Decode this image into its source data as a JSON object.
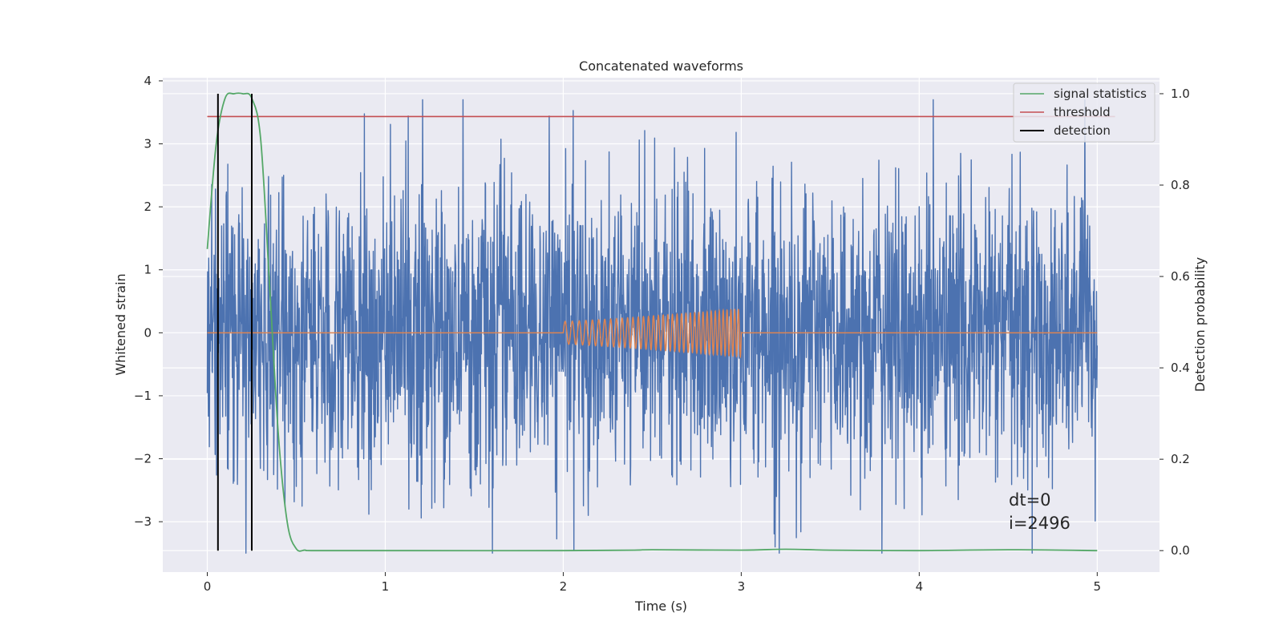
{
  "chart_data": {
    "type": "line",
    "title": "Concatenated waveforms",
    "xlabel": "Time (s)",
    "ylabel": "Whitened strain",
    "y2label": "Detection probability",
    "xlim": [
      -0.25,
      5.35
    ],
    "ylim": [
      -3.8,
      4.05
    ],
    "y2lim": [
      -0.047,
      1.035
    ],
    "x_ticks": [
      0,
      1,
      2,
      3,
      4,
      5
    ],
    "x_tick_labels": [
      "0",
      "1",
      "2",
      "3",
      "4",
      "5"
    ],
    "y_ticks": [
      -3,
      -2,
      -1,
      0,
      1,
      2,
      3,
      4
    ],
    "y_tick_labels": [
      "−3",
      "−2",
      "−1",
      "0",
      "1",
      "2",
      "3",
      "4"
    ],
    "y2_ticks": [
      0.0,
      0.2,
      0.4,
      0.6,
      0.8,
      1.0
    ],
    "y2_tick_labels": [
      "0.0",
      "0.2",
      "0.4",
      "0.6",
      "0.8",
      "1.0"
    ],
    "grid": true,
    "legend_position": "top-right",
    "legend": [
      {
        "label": "signal statistics",
        "color": "#55a868"
      },
      {
        "label": "threshold",
        "color": "#c44e52"
      },
      {
        "label": "detection",
        "color": "#000000"
      }
    ],
    "series": [
      {
        "name": "",
        "kind": "noise",
        "axis": "left",
        "color": "#4c72b0",
        "x_range": [
          0,
          5
        ],
        "amplitude_envelope": [
          -3.5,
          3.7
        ]
      },
      {
        "name": "",
        "kind": "chirp",
        "axis": "left",
        "color": "#dd8452",
        "x_range": [
          0,
          5
        ],
        "chirp_x_range": [
          2,
          3
        ],
        "chirp_amplitude": [
          0.18,
          0.38
        ]
      },
      {
        "name": "signal statistics",
        "axis": "right",
        "color": "#55a868",
        "x": [
          0,
          0.05,
          0.1,
          0.15,
          0.2,
          0.25,
          0.3,
          0.35,
          0.4,
          0.45,
          0.5,
          0.55,
          0.6,
          1,
          2,
          2.4,
          2.5,
          3,
          3.25,
          3.5,
          4,
          4.5,
          5
        ],
        "y": [
          0.66,
          0.89,
          0.99,
          1.0,
          1.0,
          0.99,
          0.9,
          0.58,
          0.25,
          0.06,
          0.004,
          0.001,
          0.0,
          0.0,
          0.0,
          0.001,
          0.002,
          0.001,
          0.003,
          0.001,
          0.0,
          0.002,
          0.0
        ]
      },
      {
        "name": "threshold",
        "axis": "right",
        "color": "#c44e52",
        "x": [
          0,
          5.1
        ],
        "y": [
          0.95,
          0.95
        ]
      }
    ],
    "detections": [
      0.06,
      0.25
    ],
    "detection_y_range": [
      0.0,
      1.0
    ],
    "annotations": [
      "dt=0",
      "i=2496"
    ],
    "annotation_position": [
      4.5,
      0.06
    ]
  }
}
